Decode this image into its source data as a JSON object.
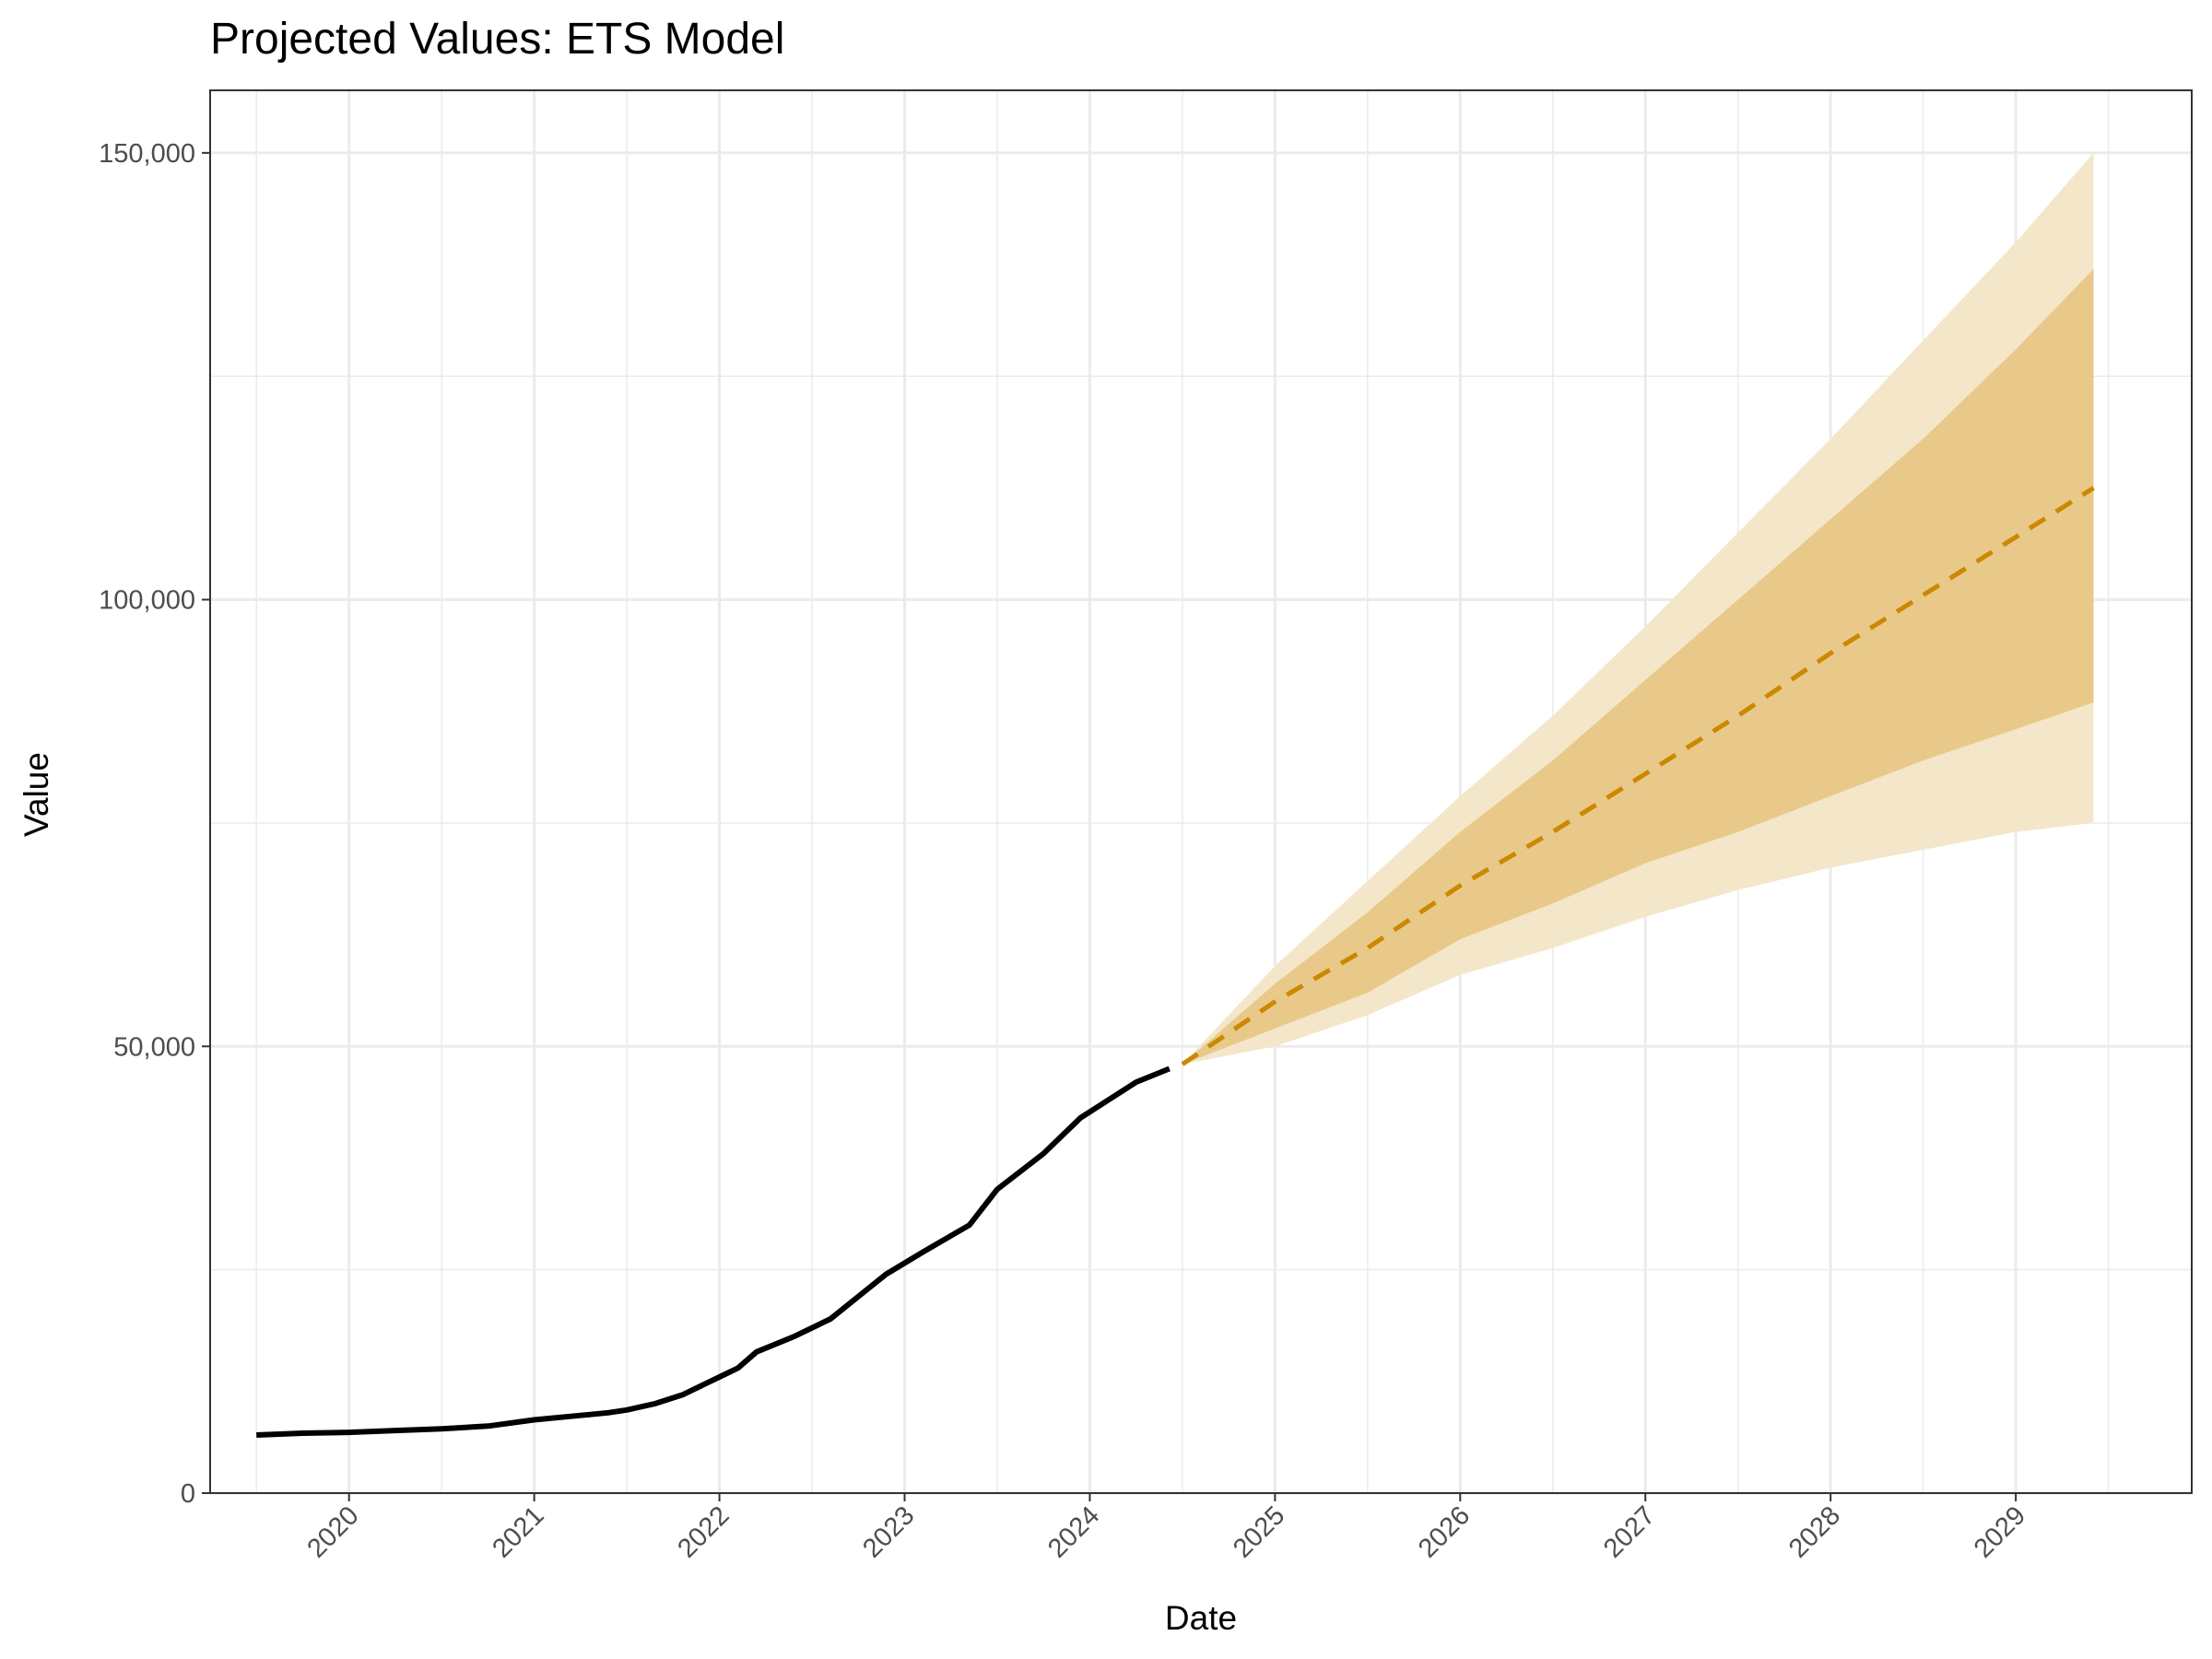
{
  "chart_data": {
    "type": "line",
    "title": "Projected Values: ETS Model",
    "xlabel": "Date",
    "ylabel": "Value",
    "xlim": [
      2019.25,
      2029.95
    ],
    "ylim": [
      0,
      157000
    ],
    "x_ticks": [
      2020,
      2021,
      2022,
      2023,
      2024,
      2025,
      2026,
      2027,
      2028,
      2029
    ],
    "x_tick_labels": [
      "2020",
      "2021",
      "2022",
      "2023",
      "2024",
      "2025",
      "2026",
      "2027",
      "2028",
      "2029"
    ],
    "y_ticks": [
      0,
      50000,
      100000,
      150000
    ],
    "y_tick_labels": [
      "0",
      "50,000",
      "100,000",
      "150,000"
    ],
    "y_minor_gridlines": [
      25000,
      75000,
      125000
    ],
    "grid": true,
    "legend": "none",
    "colors": {
      "historical": "#000000",
      "forecast": "#cc8800",
      "band_outer": "#f4e6c9",
      "band_inner": "#e8c98a",
      "grid": "#ebebeb",
      "panel_border": "#333333"
    },
    "series": [
      {
        "style": "solid",
        "x": [
          2019.5,
          2019.75,
          2020.0,
          2020.25,
          2020.5,
          2020.75,
          2021.0,
          2021.25,
          2021.4,
          2021.5,
          2021.65,
          2021.8,
          2022.0,
          2022.1,
          2022.2,
          2022.4,
          2022.6,
          2022.75,
          2022.9,
          2023.1,
          2023.35,
          2023.5,
          2023.75,
          2023.95,
          2024.1,
          2024.25,
          2024.43
        ],
        "y": [
          6500,
          6700,
          6800,
          7000,
          7200,
          7500,
          8200,
          8700,
          9000,
          9300,
          10000,
          11000,
          13000,
          14000,
          15800,
          17500,
          19500,
          22000,
          24500,
          27000,
          30000,
          34000,
          38000,
          42000,
          44000,
          46000,
          47500
        ]
      },
      {
        "style": "dashed",
        "x": [
          2024.5,
          2025.0,
          2025.5,
          2026.0,
          2026.5,
          2027.0,
          2027.5,
          2028.0,
          2028.5,
          2029.0,
          2029.42
        ],
        "y": [
          48000,
          55000,
          61000,
          68000,
          74000,
          80500,
          87000,
          94000,
          100500,
          107000,
          112500
        ],
        "lower_80": [
          48000,
          52000,
          56000,
          62000,
          66000,
          70500,
          74000,
          78000,
          82000,
          85500,
          88500
        ],
        "upper_80": [
          48000,
          57000,
          65000,
          74000,
          82000,
          91000,
          100000,
          109000,
          118000,
          128000,
          137000
        ],
        "lower_95": [
          48000,
          50000,
          53500,
          58000,
          61000,
          64500,
          67500,
          70000,
          72000,
          74000,
          75000
        ],
        "upper_95": [
          48000,
          59000,
          68500,
          78000,
          87000,
          97000,
          107500,
          118000,
          129000,
          140000,
          150000
        ]
      }
    ]
  }
}
